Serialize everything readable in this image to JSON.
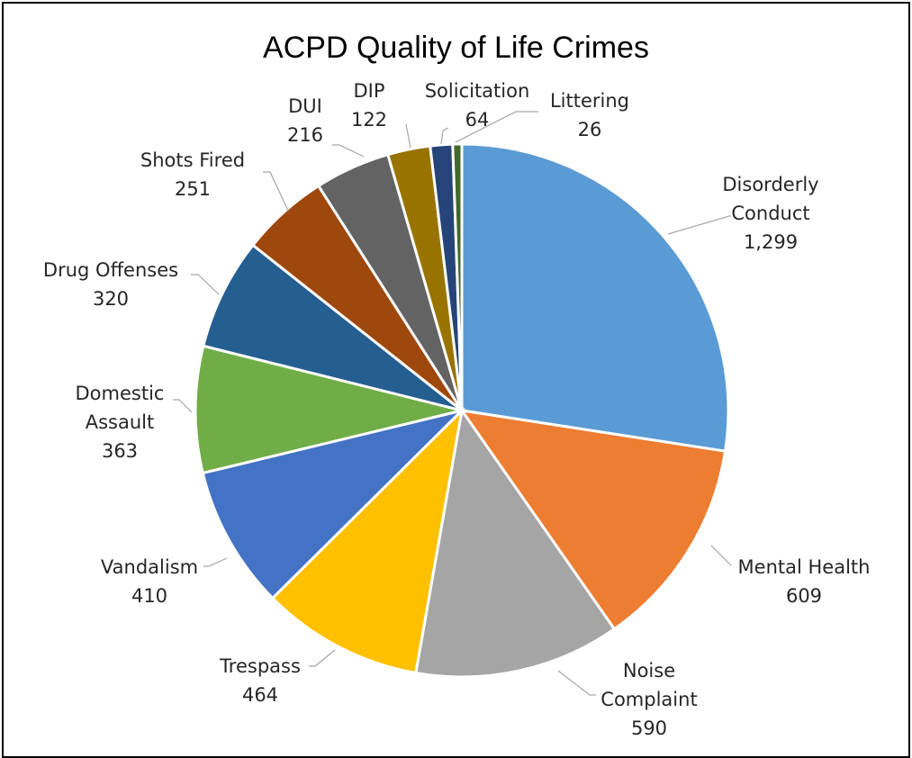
{
  "chart_data": {
    "type": "pie",
    "title": "ACPD Quality of Life Crimes",
    "slices": [
      {
        "label": "Disorderly Conduct",
        "value_text": "1,299",
        "value": 1299,
        "color": "#5b9bd5"
      },
      {
        "label": "Mental Health",
        "value_text": "609",
        "value": 609,
        "color": "#ed7d31"
      },
      {
        "label": "Noise Complaint",
        "value_text": "590",
        "value": 590,
        "color": "#a5a5a5"
      },
      {
        "label": "Trespass",
        "value_text": "464",
        "value": 464,
        "color": "#ffc000"
      },
      {
        "label": "Vandalism",
        "value_text": "410",
        "value": 410,
        "color": "#4472c4"
      },
      {
        "label": "Domestic Assault",
        "value_text": "363",
        "value": 363,
        "color": "#70ad47"
      },
      {
        "label": "Drug Offenses",
        "value_text": "320",
        "value": 320,
        "color": "#255e91"
      },
      {
        "label": "Shots Fired",
        "value_text": "251",
        "value": 251,
        "color": "#9e480e"
      },
      {
        "label": "DUI",
        "value_text": "216",
        "value": 216,
        "color": "#636363"
      },
      {
        "label": "DIP",
        "value_text": "122",
        "value": 122,
        "color": "#997300"
      },
      {
        "label": "Solicitation",
        "value_text": "64",
        "value": 64,
        "color": "#264478"
      },
      {
        "label": "Littering",
        "value_text": "26",
        "value": 26,
        "color": "#43682b"
      }
    ]
  }
}
